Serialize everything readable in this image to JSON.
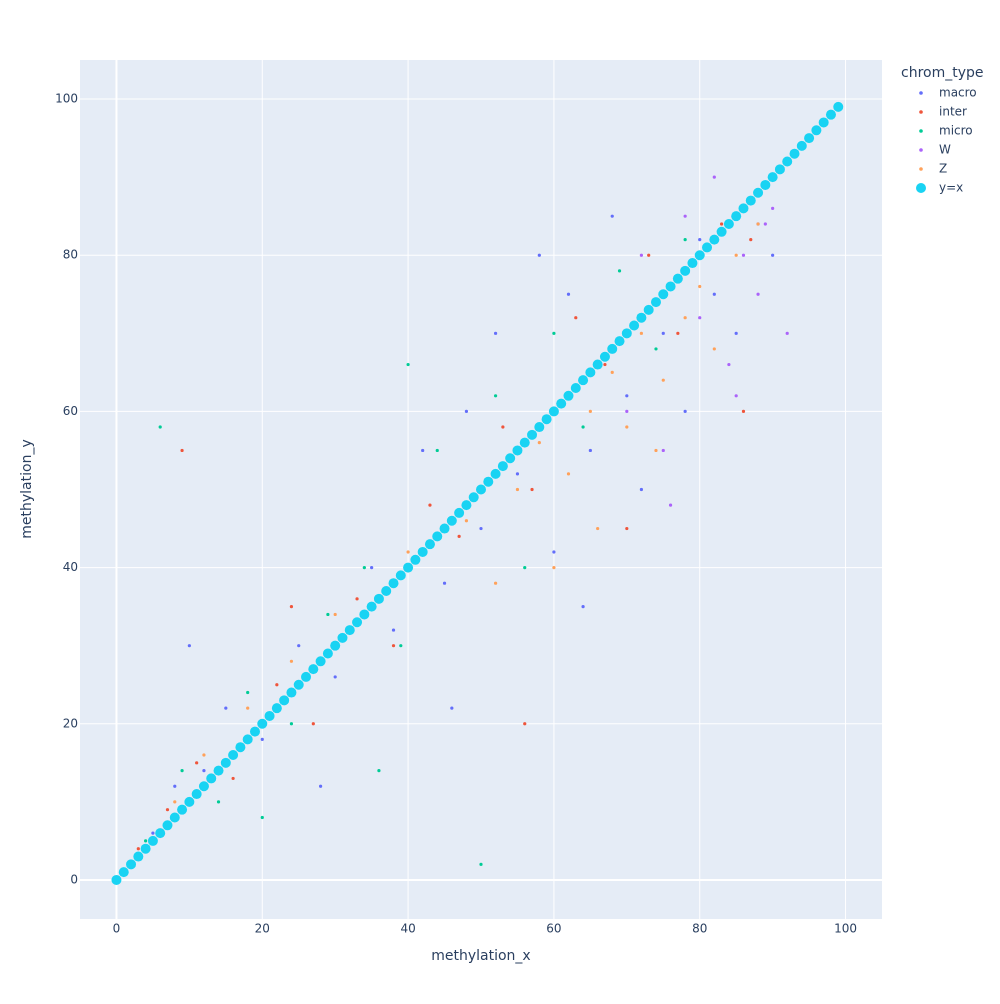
{
  "chart_data": {
    "type": "scatter",
    "xlabel": "methylation_x",
    "ylabel": "methylation_y",
    "legend_title": "chrom_type",
    "xlim": [
      -5,
      105
    ],
    "ylim": [
      -5,
      105
    ],
    "xticks": [
      0,
      20,
      40,
      60,
      80,
      100
    ],
    "yticks": [
      0,
      20,
      40,
      60,
      80,
      100
    ],
    "grid": true,
    "legend": "right",
    "series": [
      {
        "name": "macro",
        "color": "#636efa",
        "x": [
          5,
          8,
          12,
          15,
          20,
          25,
          30,
          35,
          38,
          42,
          45,
          48,
          50,
          52,
          55,
          58,
          60,
          62,
          65,
          68,
          70,
          72,
          75,
          78,
          80,
          82,
          85,
          88,
          10,
          28,
          46,
          64,
          90
        ],
        "values": [
          6,
          12,
          14,
          22,
          18,
          30,
          26,
          40,
          32,
          55,
          38,
          60,
          45,
          70,
          52,
          80,
          42,
          75,
          55,
          85,
          62,
          50,
          70,
          60,
          82,
          75,
          70,
          84,
          30,
          12,
          22,
          35,
          80
        ]
      },
      {
        "name": "inter",
        "color": "#EF553B",
        "x": [
          3,
          7,
          11,
          16,
          22,
          27,
          33,
          38,
          43,
          47,
          53,
          57,
          63,
          67,
          73,
          77,
          83,
          87,
          9,
          24,
          56,
          70,
          86
        ],
        "values": [
          4,
          9,
          15,
          13,
          25,
          20,
          36,
          30,
          48,
          44,
          58,
          50,
          72,
          66,
          80,
          70,
          84,
          82,
          55,
          35,
          20,
          45,
          60
        ]
      },
      {
        "name": "micro",
        "color": "#00cc96",
        "x": [
          4,
          9,
          14,
          18,
          24,
          29,
          34,
          39,
          44,
          48,
          52,
          56,
          60,
          64,
          69,
          74,
          78,
          6,
          20,
          36,
          50,
          40
        ],
        "values": [
          5,
          14,
          10,
          24,
          20,
          34,
          40,
          30,
          55,
          48,
          62,
          40,
          70,
          58,
          78,
          68,
          82,
          58,
          8,
          14,
          2,
          66
        ]
      },
      {
        "name": "W",
        "color": "#ab63fa",
        "x": [
          70,
          72,
          75,
          78,
          80,
          82,
          84,
          86,
          88,
          90,
          76,
          85,
          89,
          92
        ],
        "values": [
          60,
          80,
          55,
          85,
          72,
          90,
          66,
          80,
          75,
          86,
          48,
          62,
          84,
          70
        ]
      },
      {
        "name": "Z",
        "color": "#FFA15A",
        "x": [
          8,
          12,
          18,
          24,
          30,
          40,
          48,
          55,
          58,
          62,
          65,
          68,
          70,
          72,
          75,
          78,
          80,
          82,
          85,
          88,
          66,
          74,
          60,
          52
        ],
        "values": [
          10,
          16,
          22,
          28,
          34,
          42,
          46,
          50,
          56,
          52,
          60,
          65,
          58,
          70,
          64,
          72,
          76,
          68,
          80,
          84,
          45,
          55,
          40,
          38
        ]
      },
      {
        "name": "y=x",
        "color": "#19d3f3",
        "big": true,
        "x": [
          0,
          1,
          2,
          3,
          4,
          5,
          6,
          7,
          8,
          9,
          10,
          11,
          12,
          13,
          14,
          15,
          16,
          17,
          18,
          19,
          20,
          21,
          22,
          23,
          24,
          25,
          26,
          27,
          28,
          29,
          30,
          31,
          32,
          33,
          34,
          35,
          36,
          37,
          38,
          39,
          40,
          41,
          42,
          43,
          44,
          45,
          46,
          47,
          48,
          49,
          50,
          51,
          52,
          53,
          54,
          55,
          56,
          57,
          58,
          59,
          60,
          61,
          62,
          63,
          64,
          65,
          66,
          67,
          68,
          69,
          70,
          71,
          72,
          73,
          74,
          75,
          76,
          77,
          78,
          79,
          80,
          81,
          82,
          83,
          84,
          85,
          86,
          87,
          88,
          89,
          90,
          91,
          92,
          93,
          94,
          95,
          96,
          97,
          98,
          99
        ],
        "values": [
          0,
          1,
          2,
          3,
          4,
          5,
          6,
          7,
          8,
          9,
          10,
          11,
          12,
          13,
          14,
          15,
          16,
          17,
          18,
          19,
          20,
          21,
          22,
          23,
          24,
          25,
          26,
          27,
          28,
          29,
          30,
          31,
          32,
          33,
          34,
          35,
          36,
          37,
          38,
          39,
          40,
          41,
          42,
          43,
          44,
          45,
          46,
          47,
          48,
          49,
          50,
          51,
          52,
          53,
          54,
          55,
          56,
          57,
          58,
          59,
          60,
          61,
          62,
          63,
          64,
          65,
          66,
          67,
          68,
          69,
          70,
          71,
          72,
          73,
          74,
          75,
          76,
          77,
          78,
          79,
          80,
          81,
          82,
          83,
          84,
          85,
          86,
          87,
          88,
          89,
          90,
          91,
          92,
          93,
          94,
          95,
          96,
          97,
          98,
          99
        ]
      }
    ]
  }
}
